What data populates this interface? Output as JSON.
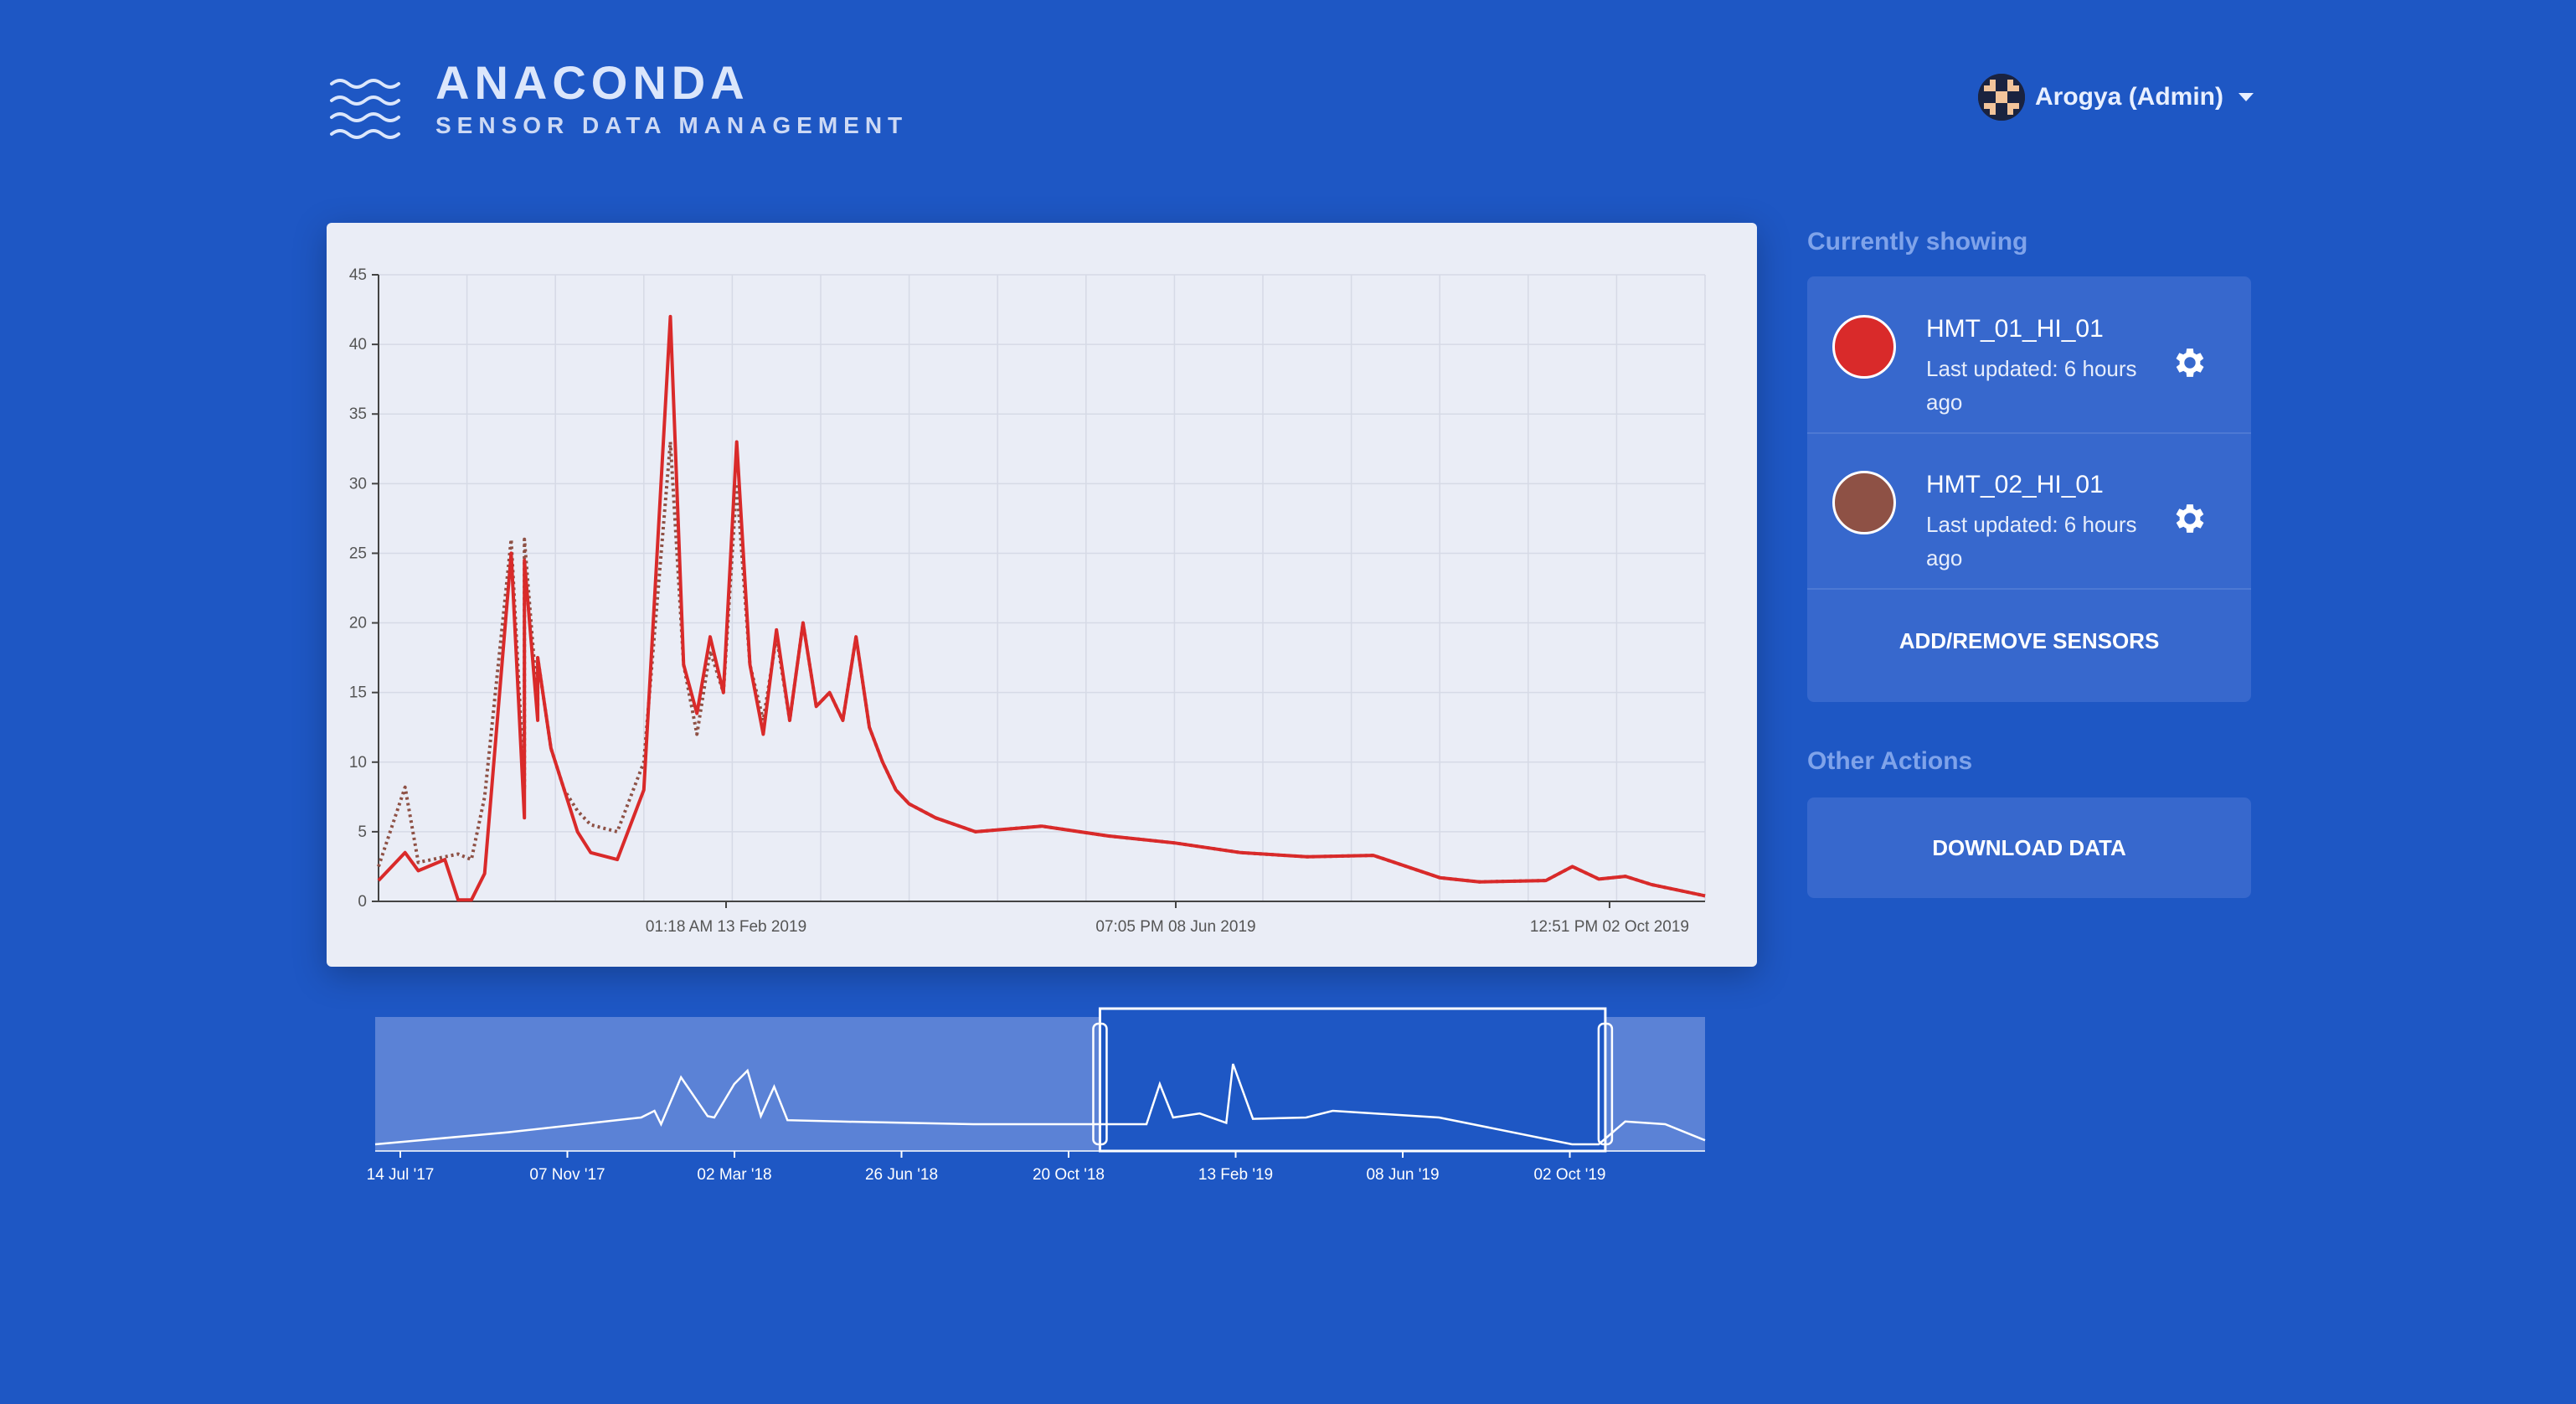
{
  "brand": {
    "title": "ANACONDA",
    "subtitle": "SENSOR DATA MANAGEMENT",
    "logo_icon": "waves-icon"
  },
  "user": {
    "name": "Arogya (Admin)",
    "avatar_icon": "pixel-avatar-icon",
    "menu_icon": "caret-down-icon"
  },
  "sidebar": {
    "currently_showing_title": "Currently showing",
    "sensors": [
      {
        "name": "HMT_01_HI_01",
        "updated": "Last updated: 6 hours ago",
        "color": "#d92a2a",
        "settings_icon": "gear-icon"
      },
      {
        "name": "HMT_02_HI_01",
        "updated": "Last updated: 6 hours ago",
        "color": "#8e5145",
        "settings_icon": "gear-icon"
      }
    ],
    "add_remove_label": "ADD/REMOVE SENSORS",
    "other_actions_title": "Other Actions",
    "download_label": "DOWNLOAD DATA"
  },
  "chart_data": [
    {
      "type": "line",
      "ylim": [
        0,
        45
      ],
      "y_ticks": [
        0,
        5,
        10,
        15,
        20,
        25,
        30,
        35,
        40,
        45
      ],
      "x_tick_labels": [
        "01:18 AM 13 Feb 2019",
        "07:05 PM 08 Jun 2019",
        "12:51 PM 02 Oct 2019"
      ],
      "x": [
        0,
        0.02,
        0.03,
        0.05,
        0.06,
        0.07,
        0.08,
        0.1,
        0.11,
        0.11,
        0.12,
        0.12,
        0.13,
        0.14,
        0.15,
        0.16,
        0.18,
        0.2,
        0.22,
        0.23,
        0.24,
        0.25,
        0.26,
        0.27,
        0.28,
        0.29,
        0.3,
        0.31,
        0.32,
        0.33,
        0.34,
        0.35,
        0.36,
        0.37,
        0.38,
        0.39,
        0.4,
        0.42,
        0.45,
        0.5,
        0.55,
        0.6,
        0.65,
        0.7,
        0.75,
        0.8,
        0.82,
        0.83,
        0.88,
        0.9,
        0.92,
        0.94,
        0.96,
        0.98,
        1.0
      ],
      "series": [
        {
          "color": "#d92a2a",
          "style": "solid",
          "values": [
            1.5,
            3.5,
            2.2,
            3.0,
            0.1,
            0.1,
            2.0,
            25.0,
            6.0,
            24.5,
            13.0,
            17.5,
            11.0,
            8.0,
            5.0,
            3.5,
            3.0,
            8.0,
            42.0,
            17.0,
            13.5,
            19.0,
            15.0,
            33.0,
            17.0,
            12.0,
            19.5,
            13.0,
            20.0,
            14.0,
            15.0,
            13.0,
            19.0,
            12.5,
            10.0,
            8.0,
            7.0,
            6.0,
            5.0,
            5.4,
            4.7,
            4.2,
            3.5,
            3.2,
            3.3,
            1.7,
            1.5,
            1.4,
            1.5,
            2.5,
            1.6,
            1.8,
            1.2,
            0.8,
            0.4
          ]
        },
        {
          "color": "#8e5145",
          "style": "dotted",
          "values": [
            2.5,
            8.2,
            2.8,
            3.2,
            3.4,
            3.0,
            7.5,
            26.0,
            8.0,
            26.0,
            14.0,
            17.5,
            11.0,
            8.0,
            6.5,
            5.5,
            5.0,
            10.0,
            33.0,
            17.0,
            12.0,
            18.0,
            15.0,
            30.0,
            17.0,
            13.0,
            19.0,
            13.0,
            20.0,
            14.0,
            15.0,
            13.0,
            19.0,
            12.5,
            10.0,
            8.0,
            7.0,
            6.0,
            5.0,
            5.4,
            4.7,
            4.2,
            3.5,
            3.2,
            3.3,
            1.7,
            1.5,
            1.4,
            1.5,
            2.5,
            1.6,
            1.8,
            1.2,
            0.8,
            0.4
          ]
        }
      ]
    },
    {
      "type": "area",
      "role": "navigator",
      "x_tick_labels": [
        "14 Jul '17",
        "07 Nov '17",
        "02 Mar '18",
        "26 Jun '18",
        "20 Oct '18",
        "13 Feb '19",
        "08 Jun '19",
        "02 Oct '19"
      ],
      "selected_range": [
        0.545,
        0.925
      ],
      "x": [
        0,
        0.1,
        0.2,
        0.21,
        0.215,
        0.23,
        0.25,
        0.255,
        0.27,
        0.28,
        0.29,
        0.3,
        0.31,
        0.35,
        0.45,
        0.55,
        0.58,
        0.59,
        0.6,
        0.62,
        0.64,
        0.645,
        0.66,
        0.7,
        0.72,
        0.8,
        0.9,
        0.92,
        0.94,
        0.97,
        1.0
      ],
      "values": [
        0.05,
        0.14,
        0.25,
        0.3,
        0.2,
        0.55,
        0.26,
        0.25,
        0.5,
        0.6,
        0.26,
        0.48,
        0.23,
        0.22,
        0.2,
        0.2,
        0.2,
        0.5,
        0.25,
        0.28,
        0.21,
        0.65,
        0.24,
        0.25,
        0.3,
        0.25,
        0.05,
        0.05,
        0.22,
        0.2,
        0.08
      ]
    }
  ]
}
